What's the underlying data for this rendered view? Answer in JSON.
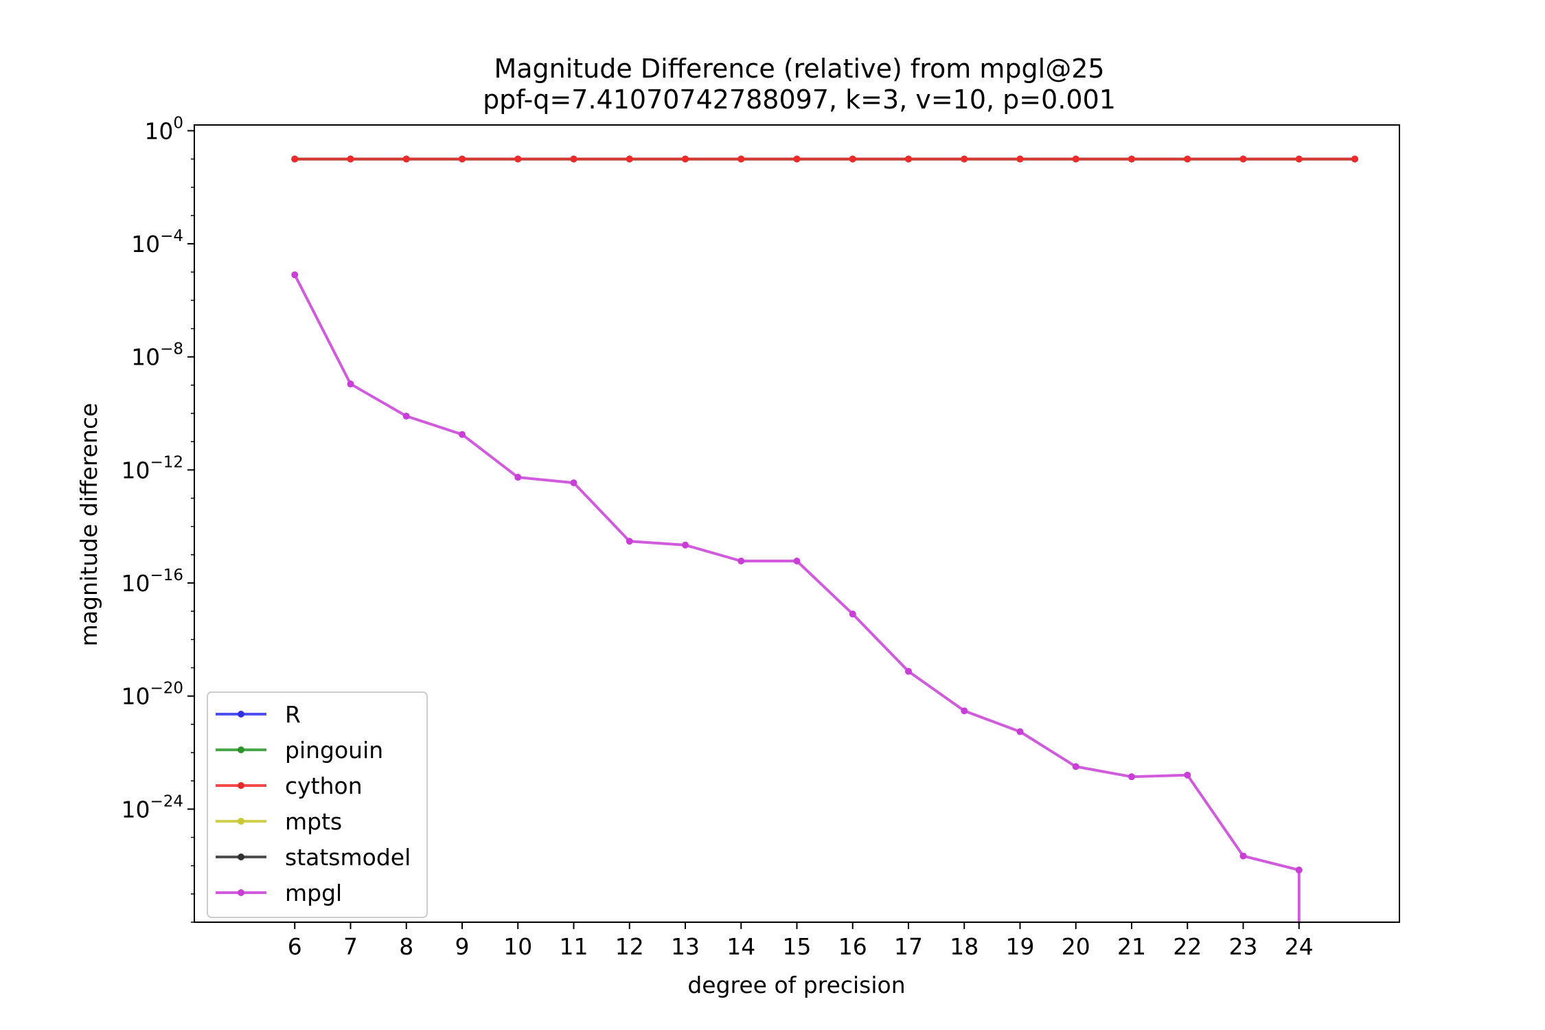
{
  "chart_data": {
    "type": "line",
    "title": "Magnitude Difference (relative) from mpgl@25",
    "subtitle": "ppf-q=7.41070742788097, k=3, v=10, p=0.001",
    "xlabel": "degree of precision",
    "ylabel": "magnitude difference",
    "y_scale": "log",
    "ylim": [
      1e-28,
      1.6
    ],
    "xlim": [
      4.2,
      25.8
    ],
    "x_ticks": [
      6,
      7,
      8,
      9,
      10,
      11,
      12,
      13,
      14,
      15,
      16,
      17,
      18,
      19,
      20,
      21,
      22,
      23,
      24
    ],
    "x_tick_labels": [
      "6",
      "7",
      "8",
      "9",
      "10",
      "11",
      "12",
      "13",
      "14",
      "15",
      "16",
      "17",
      "18",
      "19",
      "20",
      "21",
      "22",
      "23",
      "24"
    ],
    "y_ticks": [
      {
        "value": 1,
        "base": "10",
        "exp": "0"
      },
      {
        "value": 0.0001,
        "base": "10",
        "exp": "−4"
      },
      {
        "value": 1e-08,
        "base": "10",
        "exp": "−8"
      },
      {
        "value": 1e-12,
        "base": "10",
        "exp": "−12"
      },
      {
        "value": 1e-16,
        "base": "10",
        "exp": "−16"
      },
      {
        "value": 1e-20,
        "base": "10",
        "exp": "−20"
      },
      {
        "value": 1e-24,
        "base": "10",
        "exp": "−24"
      }
    ],
    "grid": false,
    "legend_position": "lower-left",
    "series": [
      {
        "name": "R",
        "color": "#3030f0",
        "x": [
          6,
          7,
          8,
          9,
          10,
          11,
          12,
          13,
          14,
          15,
          16,
          17,
          18,
          19,
          20,
          21,
          22,
          23,
          24,
          25
        ],
        "y": [
          0.1,
          0.1,
          0.1,
          0.1,
          0.1,
          0.1,
          0.1,
          0.1,
          0.1,
          0.1,
          0.1,
          0.1,
          0.1,
          0.1,
          0.1,
          0.1,
          0.1,
          0.1,
          0.1,
          0.1
        ]
      },
      {
        "name": "pingouin",
        "color": "#2a962a",
        "x": [
          6,
          7,
          8,
          9,
          10,
          11,
          12,
          13,
          14,
          15,
          16,
          17,
          18,
          19,
          20,
          21,
          22,
          23,
          24,
          25
        ],
        "y": [
          0.1,
          0.1,
          0.1,
          0.1,
          0.1,
          0.1,
          0.1,
          0.1,
          0.1,
          0.1,
          0.1,
          0.1,
          0.1,
          0.1,
          0.1,
          0.1,
          0.1,
          0.1,
          0.1,
          0.1
        ]
      },
      {
        "name": "cython",
        "color": "#f02a2a",
        "x": [
          6,
          7,
          8,
          9,
          10,
          11,
          12,
          13,
          14,
          15,
          16,
          17,
          18,
          19,
          20,
          21,
          22,
          23,
          24,
          25
        ],
        "y": [
          0.1,
          0.1,
          0.1,
          0.1,
          0.1,
          0.1,
          0.1,
          0.1,
          0.1,
          0.1,
          0.1,
          0.1,
          0.1,
          0.1,
          0.1,
          0.1,
          0.1,
          0.1,
          0.1,
          0.1
        ]
      },
      {
        "name": "mpts",
        "color": "#c8c830",
        "x": [],
        "y": []
      },
      {
        "name": "statsmodel",
        "color": "#303030",
        "x": [],
        "y": []
      },
      {
        "name": "mpgl",
        "color": "#c83ed6",
        "x": [
          6,
          7,
          8,
          9,
          10,
          11,
          12,
          13,
          14,
          15,
          16,
          17,
          18,
          19,
          20,
          21,
          22,
          23,
          24
        ],
        "y": [
          8e-06,
          1.1e-09,
          8e-11,
          1.8e-11,
          5.5e-13,
          3.5e-13,
          3e-15,
          2.2e-15,
          6e-16,
          6e-16,
          8e-18,
          7.5e-20,
          3e-21,
          5.5e-22,
          3.2e-23,
          1.4e-23,
          1.6e-23,
          2.2e-26,
          7e-27
        ]
      }
    ]
  }
}
